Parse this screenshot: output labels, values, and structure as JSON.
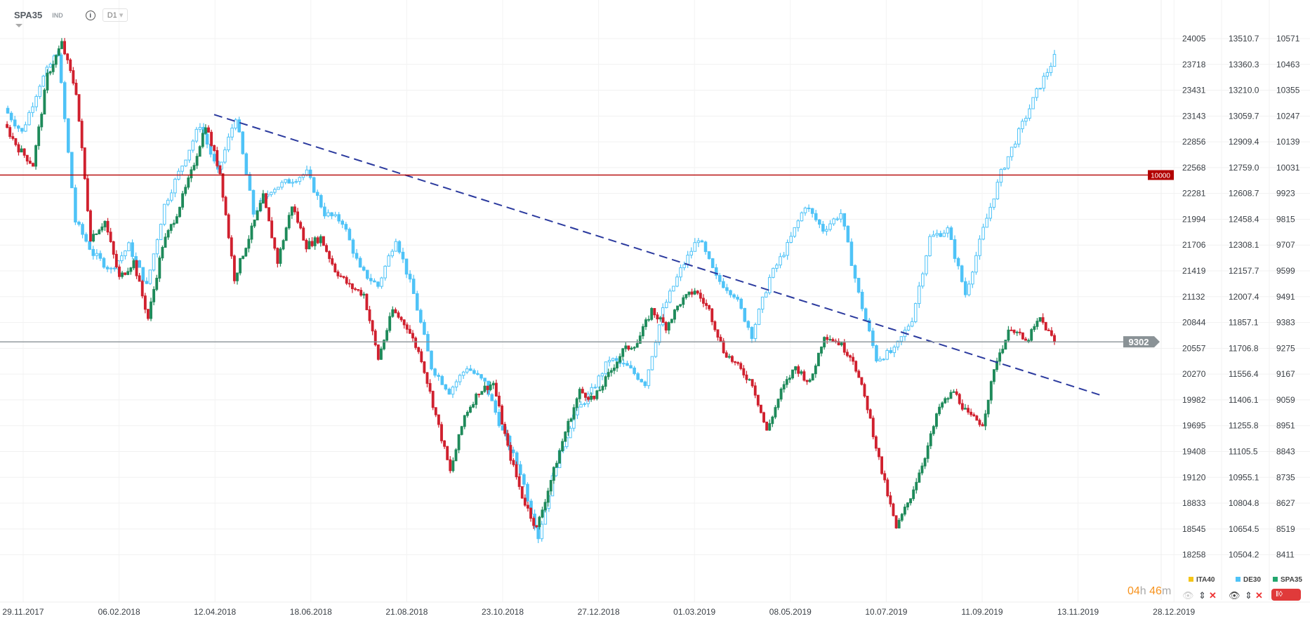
{
  "header": {
    "symbol": "SPA35",
    "type": "IND",
    "info_icon": "info-icon",
    "timeframe": "D1"
  },
  "countdown": {
    "hours": "04",
    "h": "h",
    "minutes": "46",
    "m": "m"
  },
  "legend": [
    {
      "name": "ITA40",
      "color": "#f5c518",
      "visible": false
    },
    {
      "name": "DE30",
      "color": "#4fc3f7",
      "visible": true
    },
    {
      "name": "SPA35",
      "color": "#22a66e",
      "visible": true
    }
  ],
  "chart_data": {
    "type": "candlestick",
    "x_tick_labels": [
      "29.11.2017",
      "06.02.2018",
      "12.04.2018",
      "18.06.2018",
      "21.08.2018",
      "23.10.2018",
      "27.12.2018",
      "01.03.2019",
      "08.05.2019",
      "10.07.2019",
      "11.09.2019",
      "13.11.2019",
      "28.12.2019"
    ],
    "y_axes": [
      {
        "series": "ITA40",
        "ticks": [
          "24005",
          "23718",
          "23431",
          "23143",
          "22856",
          "22568",
          "22281",
          "21994",
          "21706",
          "21419",
          "21132",
          "20844",
          "20557",
          "20270",
          "19982",
          "19695",
          "19408",
          "19120",
          "18833",
          "18545",
          "18258"
        ]
      },
      {
        "series": "DE30",
        "ticks": [
          "13510.7",
          "13360.3",
          "13210.0",
          "13059.7",
          "12909.4",
          "12759.0",
          "12608.7",
          "12458.4",
          "12308.1",
          "12157.7",
          "12007.4",
          "11857.1",
          "11706.8",
          "11556.4",
          "11406.1",
          "11255.8",
          "11105.5",
          "10955.1",
          "10804.8",
          "10654.5",
          "10504.2"
        ],
        "range": [
          10504.2,
          13510.7
        ]
      },
      {
        "series": "SPA35",
        "ticks": [
          "10571",
          "10463",
          "10355",
          "10247",
          "10139",
          "10031",
          "9923",
          "9815",
          "9707",
          "9599",
          "9491",
          "9383",
          "9275",
          "9167",
          "9059",
          "8951",
          "8843",
          "8735",
          "8627",
          "8519",
          "8411"
        ],
        "range": [
          8411,
          10571
        ]
      }
    ],
    "series": [
      {
        "name": "SPA35",
        "up_color": "#1e8a5a",
        "down_color": "#d0202e",
        "closes": [
          10212,
          10111,
          10043,
          10416,
          10551,
          10348,
          9738,
          9806,
          9569,
          9637,
          9400,
          9705,
          9840,
          10009,
          10212,
          10009,
          9569,
          9738,
          9908,
          9637,
          9874,
          9705,
          9738,
          9603,
          9535,
          9501,
          9231,
          9434,
          9366,
          9231,
          8994,
          8757,
          8994,
          9095,
          9129,
          8858,
          8655,
          8520,
          8723,
          8926,
          9095,
          9062,
          9163,
          9265,
          9299,
          9434,
          9366,
          9468,
          9518,
          9434,
          9265,
          9197,
          9129,
          8926,
          9095,
          9197,
          9129,
          9332,
          9299,
          9231,
          9028,
          8757,
          8520,
          8655,
          8825,
          9028,
          9095,
          8994,
          8960,
          9231,
          9366,
          9299,
          9400,
          9302
        ]
      },
      {
        "name": "DE30",
        "color": "#4fc3f7",
        "closes": [
          13105,
          12964,
          13247,
          13435,
          12446,
          12257,
          12163,
          12304,
          12069,
          12540,
          12775,
          13011,
          12728,
          13058,
          12493,
          12634,
          12681,
          12728,
          12493,
          12446,
          12163,
          12069,
          12351,
          12022,
          11598,
          11457,
          11598,
          11504,
          11221,
          10986,
          10609,
          11033,
          11316,
          11457,
          11645,
          11598,
          11504,
          11928,
          12163,
          12351,
          12116,
          12022,
          11786,
          12116,
          12304,
          12540,
          12398,
          12493,
          12022,
          11645,
          11692,
          11880,
          12351,
          12398,
          12022,
          12398,
          12728,
          12964,
          13199,
          13400
        ]
      }
    ],
    "horizontal_lines": [
      {
        "label": "10000",
        "value": 10000,
        "color": "#b30000"
      },
      {
        "label": "9302",
        "value": 9302,
        "color": "#8a9296"
      }
    ],
    "trendline": {
      "from": {
        "date": "12.04.2018",
        "value": 10253
      },
      "to": {
        "date": "13.11.2019",
        "value": 9075
      },
      "color": "#2b3a9e",
      "style": "dashed"
    },
    "grid": true
  }
}
